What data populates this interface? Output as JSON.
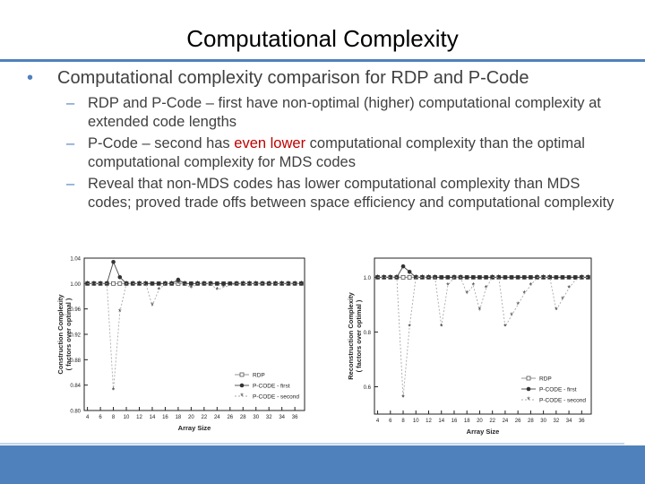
{
  "slide": {
    "title": "Computational Complexity",
    "bullet1": "Computational complexity comparison for RDP and P-Code",
    "sub1": "RDP and P-Code – first have non-optimal (higher) computational complexity at extended code lengths",
    "sub2_before": "P-Code – second has ",
    "sub2_highlight": "even lower",
    "sub2_after": " computational complexity than the optimal computational complexity for MDS codes",
    "sub3": "Reveal that non-MDS codes has lower computational complexity than MDS codes; proved trade offs between space efficiency and computational complexity",
    "colors": {
      "accent": "#4f81bd",
      "highlight": "#c00000",
      "text": "#404040"
    }
  },
  "chart_data": [
    {
      "type": "line",
      "xlabel": "Array Size",
      "ylabel_line1": "Construction Complexity",
      "ylabel_line2": "( factors over optimal )",
      "x": [
        4,
        5,
        6,
        7,
        8,
        9,
        10,
        11,
        12,
        13,
        14,
        15,
        16,
        17,
        18,
        19,
        20,
        21,
        22,
        23,
        24,
        25,
        26,
        27,
        28,
        29,
        30,
        31,
        32,
        33,
        34,
        35,
        36,
        37
      ],
      "xticks": [
        "4",
        "6",
        "8",
        "10",
        "12",
        "14",
        "16",
        "18",
        "20",
        "22",
        "24",
        "26",
        "28",
        "30",
        "32",
        "34",
        "36"
      ],
      "yticks": [
        "0.80",
        "0.84",
        "0.88",
        "0.92",
        "0.96",
        "1.00",
        "1.04"
      ],
      "ylim": [
        0.8,
        1.04
      ],
      "series": [
        {
          "name": "RDP",
          "marker": "square",
          "values": [
            1.0,
            1.0,
            1.0,
            1.0,
            1.0,
            1.0,
            1.0,
            1.0,
            1.0,
            1.0,
            1.0,
            1.0,
            1.0,
            1.0,
            1.0,
            1.0,
            1.0,
            1.0,
            1.0,
            1.0,
            1.0,
            1.0,
            1.0,
            1.0,
            1.0,
            1.0,
            1.0,
            1.0,
            1.0,
            1.0,
            1.0,
            1.0,
            1.0,
            1.0
          ]
        },
        {
          "name": "P-CODE - first",
          "marker": "circle",
          "values": [
            1.0,
            1.0,
            1.0,
            1.0,
            1.034,
            1.01,
            1.0,
            1.0,
            1.0,
            1.0,
            1.0,
            1.0,
            1.0,
            1.0,
            1.006,
            1.0,
            1.0,
            1.0,
            1.0,
            1.0,
            1.0,
            1.0,
            1.0,
            1.0,
            1.0,
            1.0,
            1.0,
            1.0,
            1.0,
            1.0,
            1.0,
            1.0,
            1.0,
            1.0
          ]
        },
        {
          "name": "P-CODE - second",
          "marker": "star",
          "values": [
            1.0,
            1.0,
            1.0,
            1.0,
            0.832,
            0.955,
            1.0,
            1.0,
            1.0,
            1.0,
            0.965,
            0.99,
            1.0,
            1.0,
            1.0,
            1.0,
            0.993,
            1.0,
            1.0,
            1.0,
            0.99,
            0.994,
            0.997,
            1.0,
            1.0,
            1.0,
            1.0,
            1.0,
            1.0,
            1.0,
            1.0,
            1.0,
            1.0,
            1.0
          ]
        }
      ],
      "legend_position": "bottom-right"
    },
    {
      "type": "line",
      "xlabel": "Array Size",
      "ylabel_line1": "Reconstruction Complexity",
      "ylabel_line2": "( factors over optimal )",
      "x": [
        4,
        5,
        6,
        7,
        8,
        9,
        10,
        11,
        12,
        13,
        14,
        15,
        16,
        17,
        18,
        19,
        20,
        21,
        22,
        23,
        24,
        25,
        26,
        27,
        28,
        29,
        30,
        31,
        32,
        33,
        34,
        35,
        36,
        37
      ],
      "xticks": [
        "4",
        "6",
        "8",
        "10",
        "12",
        "14",
        "16",
        "18",
        "20",
        "22",
        "24",
        "26",
        "28",
        "30",
        "32",
        "34",
        "36"
      ],
      "yticks": [
        "0.6",
        "0.8",
        "1.0"
      ],
      "ylim": [
        0.5,
        1.07
      ],
      "series": [
        {
          "name": "RDP",
          "marker": "square",
          "values": [
            1.0,
            1.0,
            1.0,
            1.0,
            1.0,
            1.0,
            1.0,
            1.0,
            1.0,
            1.0,
            1.0,
            1.0,
            1.0,
            1.0,
            1.0,
            1.0,
            1.0,
            1.0,
            1.0,
            1.0,
            1.0,
            1.0,
            1.0,
            1.0,
            1.0,
            1.0,
            1.0,
            1.0,
            1.0,
            1.0,
            1.0,
            1.0,
            1.0,
            1.0
          ]
        },
        {
          "name": "P-CODE - first",
          "marker": "circle",
          "values": [
            1.0,
            1.0,
            1.0,
            1.0,
            1.04,
            1.02,
            1.0,
            1.0,
            1.0,
            1.0,
            1.0,
            1.0,
            1.0,
            1.0,
            1.0,
            1.0,
            1.0,
            1.0,
            1.0,
            1.0,
            1.0,
            1.0,
            1.0,
            1.0,
            1.0,
            1.0,
            1.0,
            1.0,
            1.0,
            1.0,
            1.0,
            1.0,
            1.0,
            1.0
          ]
        },
        {
          "name": "P-CODE - second",
          "marker": "star",
          "values": [
            1.0,
            1.0,
            1.0,
            1.0,
            0.56,
            0.82,
            1.0,
            1.0,
            1.0,
            1.0,
            0.82,
            0.97,
            1.0,
            1.0,
            0.94,
            0.97,
            0.88,
            0.96,
            1.0,
            1.0,
            0.82,
            0.86,
            0.9,
            0.94,
            0.97,
            1.0,
            1.0,
            1.0,
            0.88,
            0.92,
            0.96,
            0.99,
            1.0,
            1.0
          ]
        }
      ],
      "legend_position": "bottom-right"
    }
  ]
}
